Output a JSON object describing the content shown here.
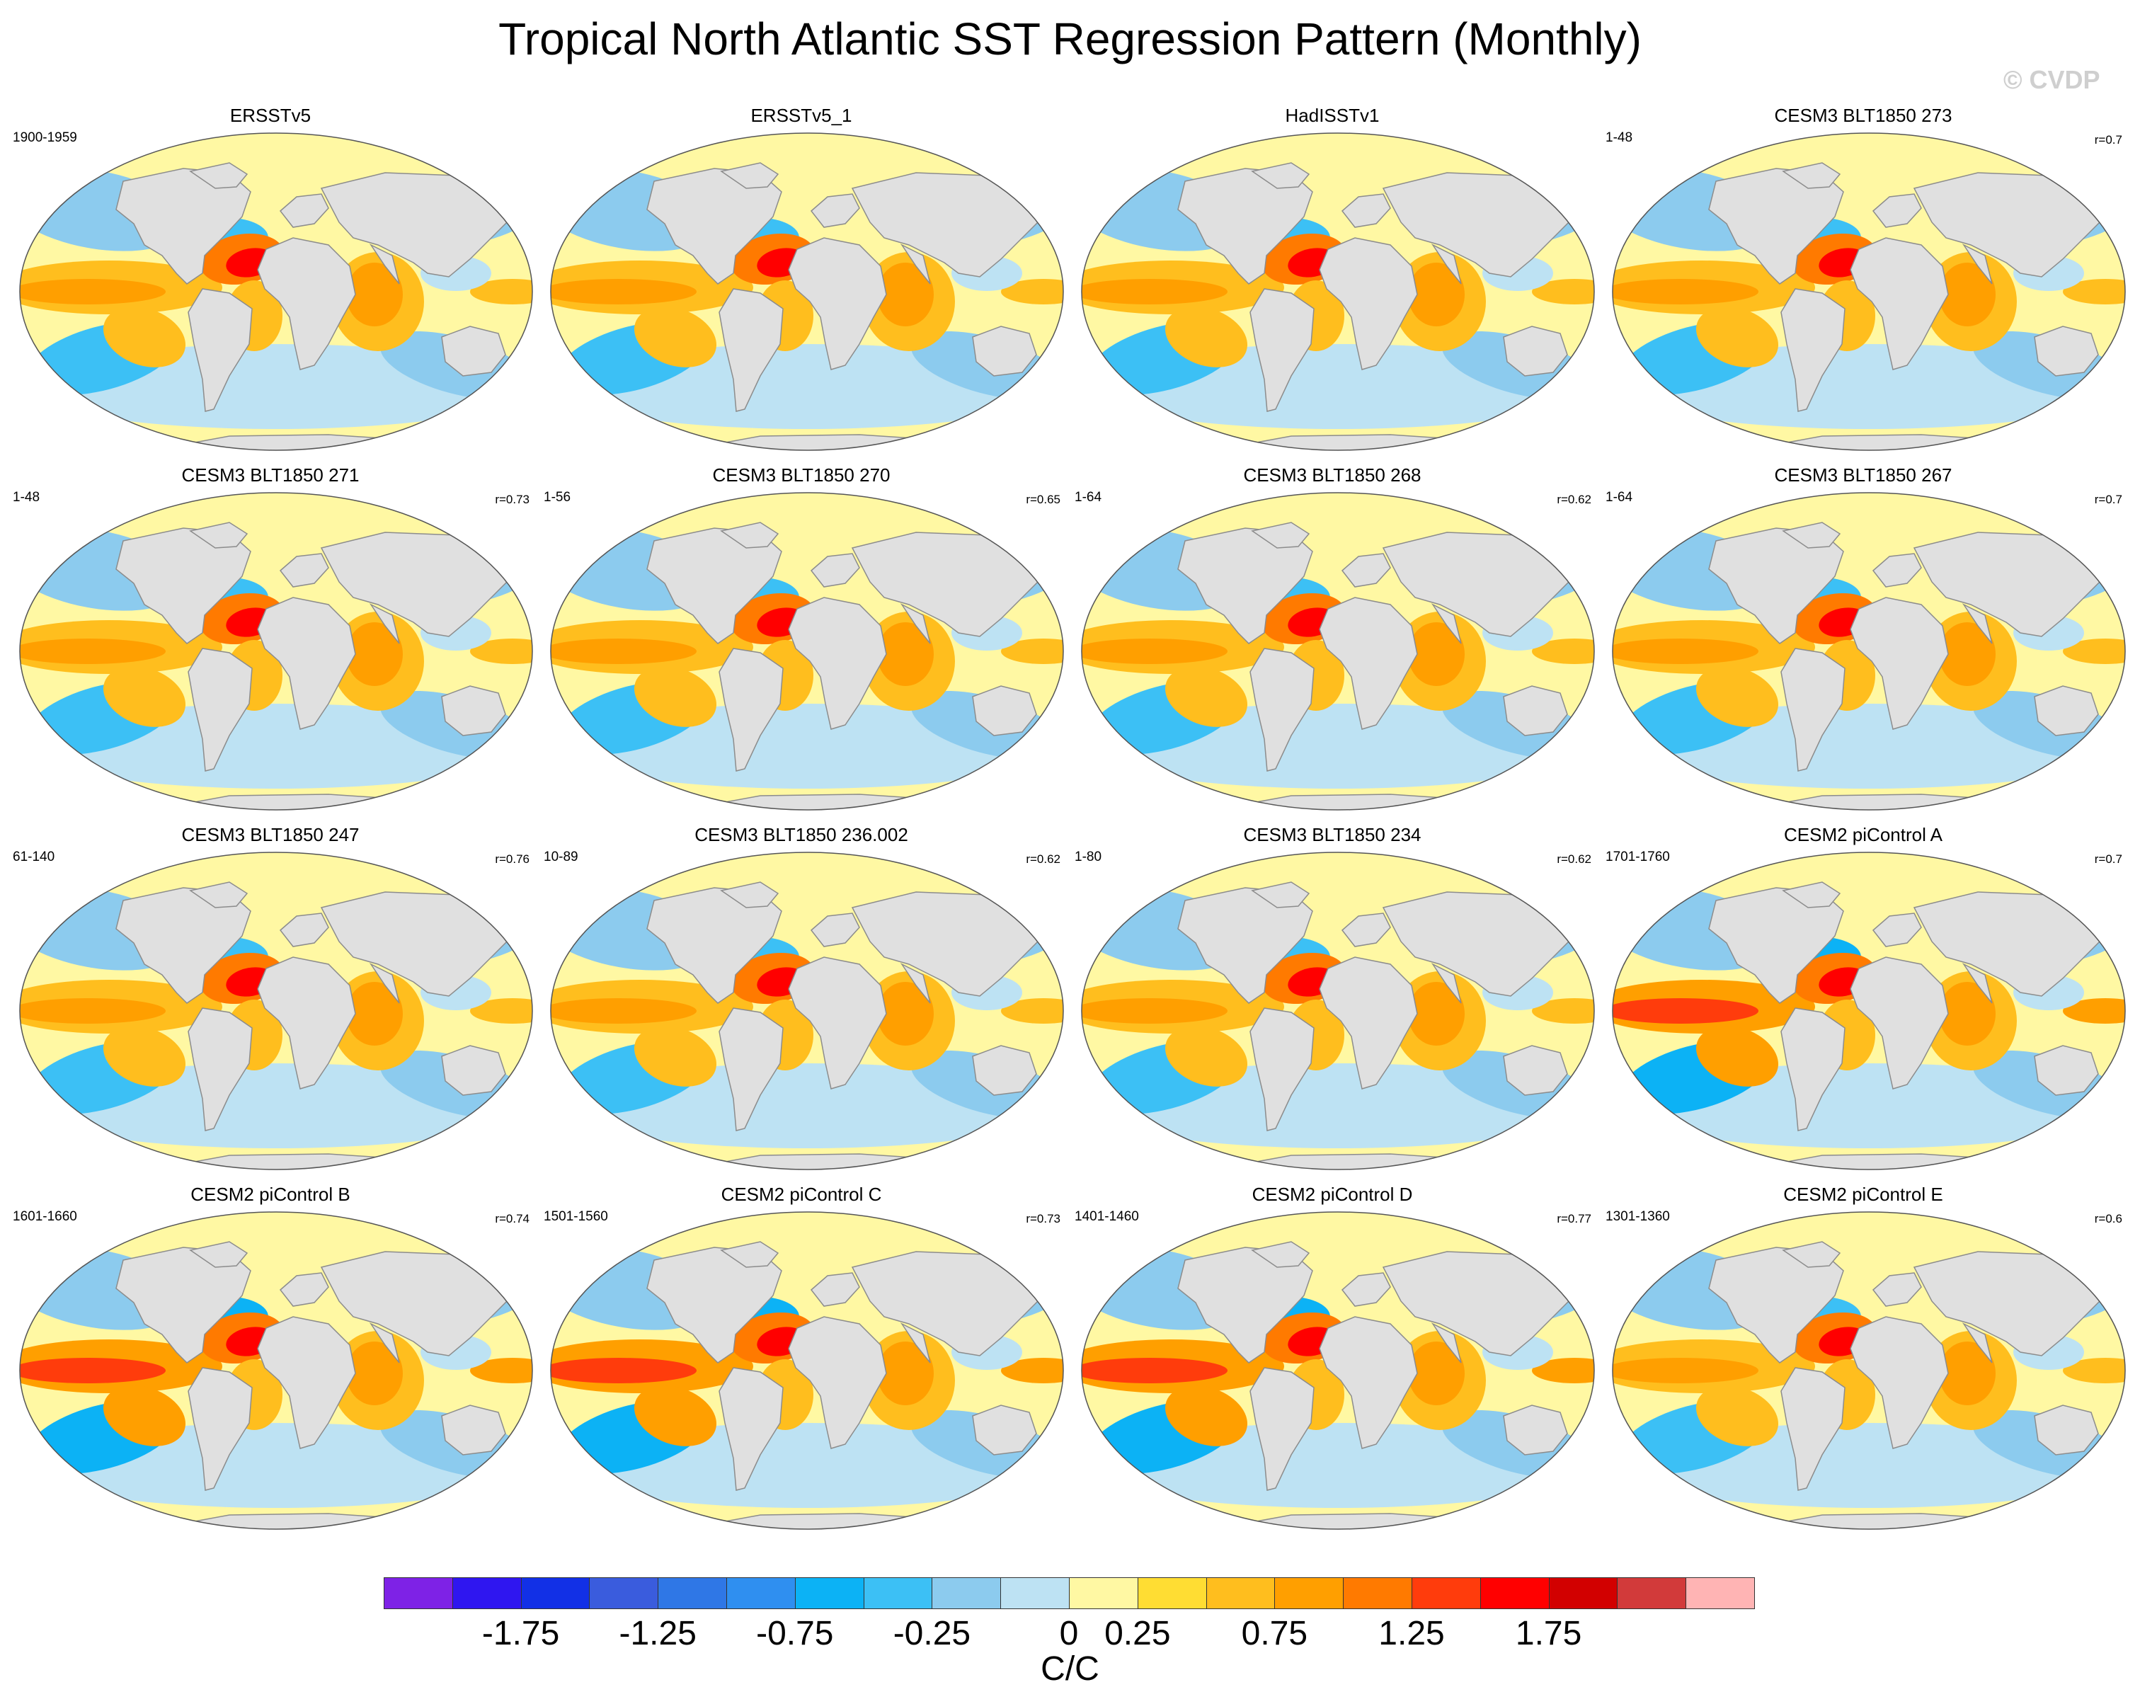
{
  "title": "Tropical North Atlantic SST Regression Pattern (Monthly)",
  "watermark": "© CVDP",
  "colors": {
    "land": "#e0e0e0",
    "ocean_default": "#ffef7a",
    "coast": "#8c8c8c"
  },
  "panels": [
    {
      "title": "ERSSTv5",
      "years": "1900-1959",
      "corr": "",
      "style": "obs"
    },
    {
      "title": "ERSSTv5_1",
      "years": "",
      "corr": "",
      "style": "obs"
    },
    {
      "title": "HadISSTv1",
      "years": "",
      "corr": "",
      "style": "obs"
    },
    {
      "title": "CESM3 BLT1850 273",
      "years": "1-48",
      "corr": "r=0.7",
      "style": "model"
    },
    {
      "title": "CESM3 BLT1850 271",
      "years": "1-48",
      "corr": "r=0.73",
      "style": "model"
    },
    {
      "title": "CESM3 BLT1850 270",
      "years": "1-56",
      "corr": "r=0.65",
      "style": "model"
    },
    {
      "title": "CESM3 BLT1850 268",
      "years": "1-64",
      "corr": "r=0.62",
      "style": "model"
    },
    {
      "title": "CESM3 BLT1850 267",
      "years": "1-64",
      "corr": "r=0.7",
      "style": "model"
    },
    {
      "title": "CESM3 BLT1850 247",
      "years": "61-140",
      "corr": "r=0.76",
      "style": "model"
    },
    {
      "title": "CESM3 BLT1850 236.002",
      "years": "10-89",
      "corr": "r=0.62",
      "style": "model"
    },
    {
      "title": "CESM3 BLT1850 234",
      "years": "1-80",
      "corr": "r=0.62",
      "style": "model"
    },
    {
      "title": "CESM2 piControl A",
      "years": "1701-1760",
      "corr": "r=0.7",
      "style": "strong"
    },
    {
      "title": "CESM2 piControl B",
      "years": "1601-1660",
      "corr": "r=0.74",
      "style": "strong"
    },
    {
      "title": "CESM2 piControl C",
      "years": "1501-1560",
      "corr": "r=0.73",
      "style": "strong"
    },
    {
      "title": "CESM2 piControl D",
      "years": "1401-1460",
      "corr": "r=0.77",
      "style": "strong"
    },
    {
      "title": "CESM2 piControl E",
      "years": "1301-1360",
      "corr": "r=0.6",
      "style": "model"
    }
  ],
  "colorbar": {
    "units": "C/C",
    "colors": [
      "#7e22e6",
      "#2f16f0",
      "#1230e6",
      "#3a5cdd",
      "#2f77e6",
      "#2f8ff0",
      "#0cb2f5",
      "#3cc0f5",
      "#8ccbee",
      "#bde2f3",
      "#fff8a3",
      "#ffdd33",
      "#ffbe1e",
      "#ff9f00",
      "#ff7a00",
      "#ff3c0c",
      "#ff0000",
      "#d20000",
      "#d23a3a",
      "#ffb4b4"
    ],
    "tick_labels": [
      "-1.75",
      "-1.25",
      "-0.75",
      "-0.25",
      "0",
      "0.25",
      "0.75",
      "1.25",
      "1.75"
    ],
    "tick_boundaries": [
      2,
      4,
      6,
      8,
      10,
      11,
      13,
      15,
      17
    ]
  }
}
